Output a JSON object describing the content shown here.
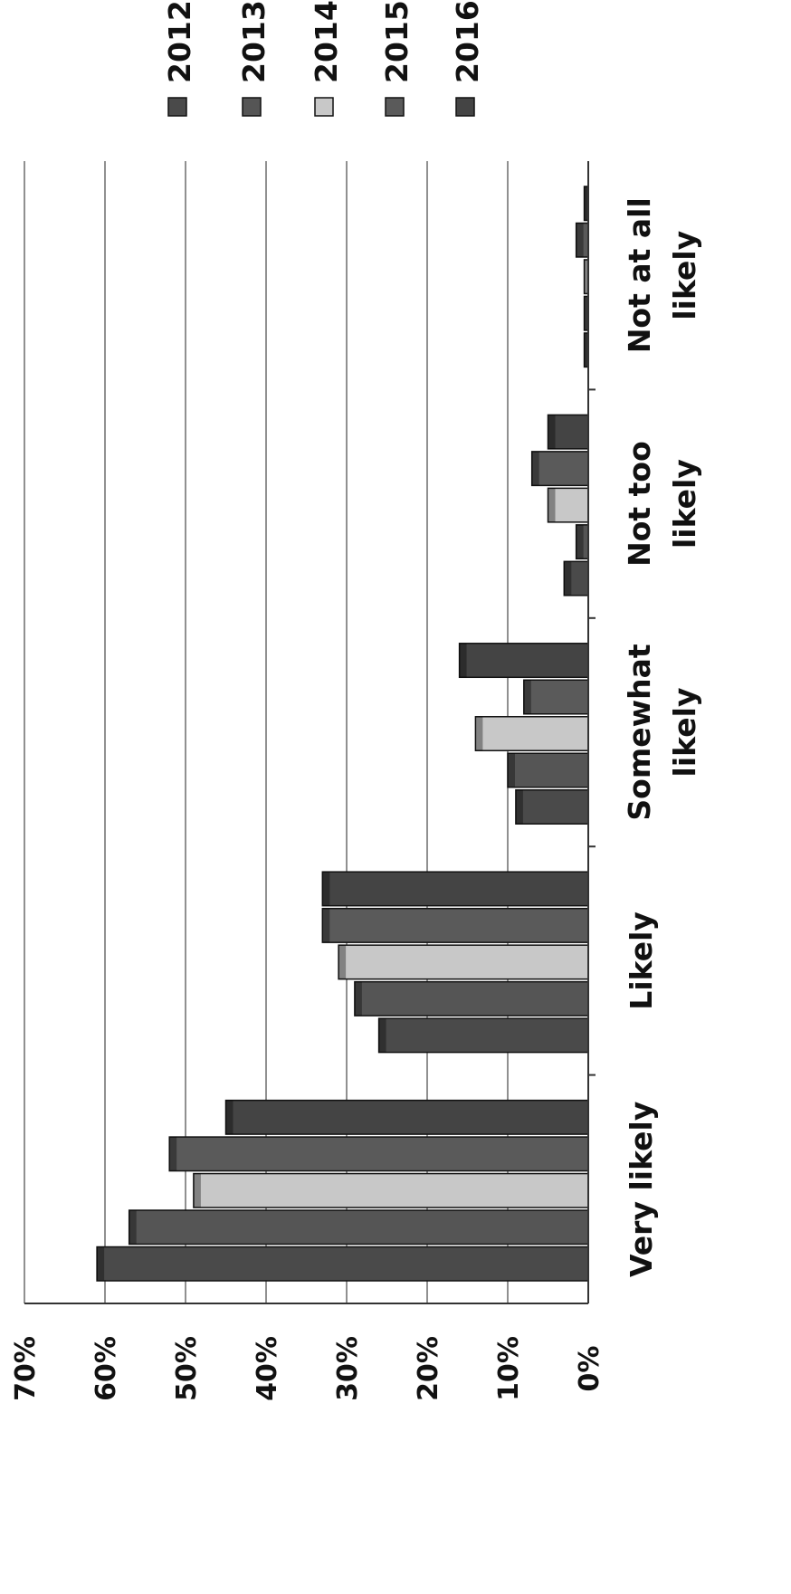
{
  "chart_data": {
    "type": "bar",
    "orientation": "rotated-90-clockwise",
    "categories": [
      "Very likely",
      "Likely",
      "Somewhat likely",
      "Not too likely",
      "Not at all likely"
    ],
    "series": [
      {
        "name": "2012",
        "color": "#4a4a4a",
        "values": [
          61,
          26,
          9,
          3,
          0.5
        ]
      },
      {
        "name": "2013",
        "color": "#555555",
        "values": [
          57,
          29,
          10,
          1.5,
          0.5
        ]
      },
      {
        "name": "2014",
        "color": "#c8c8c8",
        "values": [
          49,
          31,
          14,
          5,
          0.5
        ]
      },
      {
        "name": "2015",
        "color": "#5a5a5a",
        "values": [
          52,
          33,
          8,
          7,
          1.5
        ]
      },
      {
        "name": "2016",
        "color": "#444444",
        "values": [
          45,
          33,
          16,
          5,
          0.5
        ]
      }
    ],
    "y_ticks": [
      "0%",
      "10%",
      "20%",
      "30%",
      "40%",
      "50%",
      "60%",
      "70%"
    ],
    "ylim": [
      0,
      70
    ],
    "grid": true,
    "legend_position": "right"
  }
}
